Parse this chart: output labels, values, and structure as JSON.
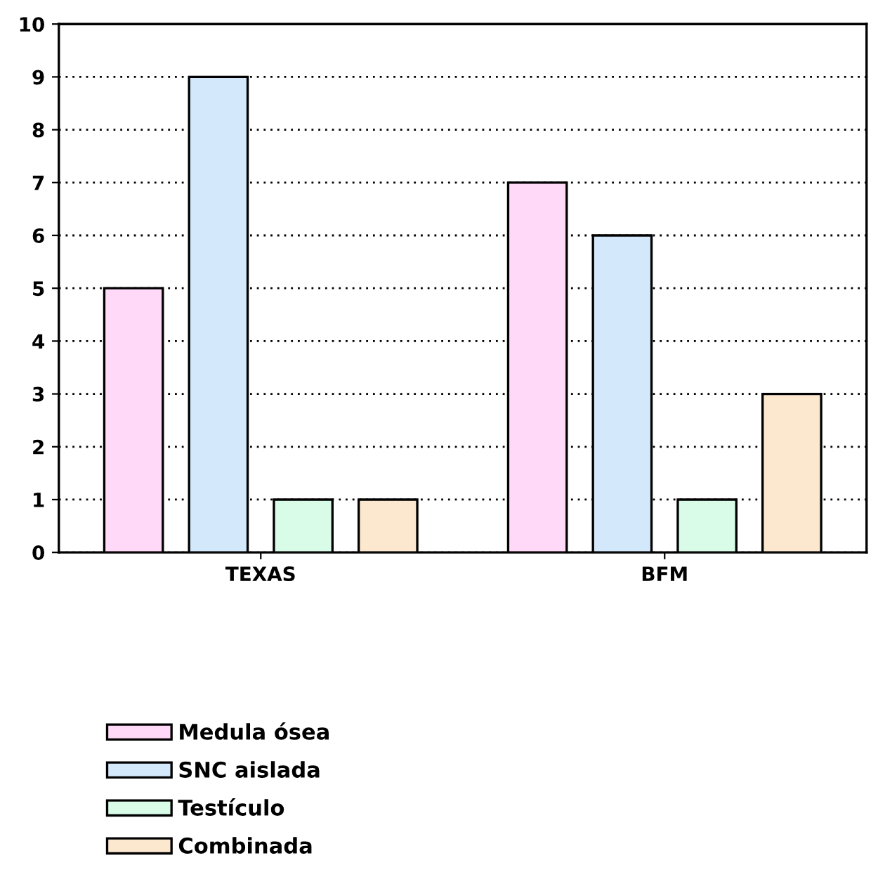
{
  "chart_data": {
    "type": "bar",
    "categories": [
      "TEXAS",
      "BFM"
    ],
    "series": [
      {
        "name": "Medula ósea",
        "color": "#ffd9f7",
        "values": [
          5,
          7
        ]
      },
      {
        "name": "SNC aislada",
        "color": "#d4e8fc",
        "values": [
          9,
          6
        ]
      },
      {
        "name": "Testículo",
        "color": "#d9fce8",
        "values": [
          1,
          1
        ]
      },
      {
        "name": "Combinada",
        "color": "#fce8cf",
        "values": [
          1,
          3
        ]
      }
    ],
    "ylim": [
      0,
      10
    ],
    "yticks": [
      0,
      1,
      2,
      3,
      4,
      5,
      6,
      7,
      8,
      9,
      10
    ],
    "grid": "y",
    "legend": "bottom"
  }
}
